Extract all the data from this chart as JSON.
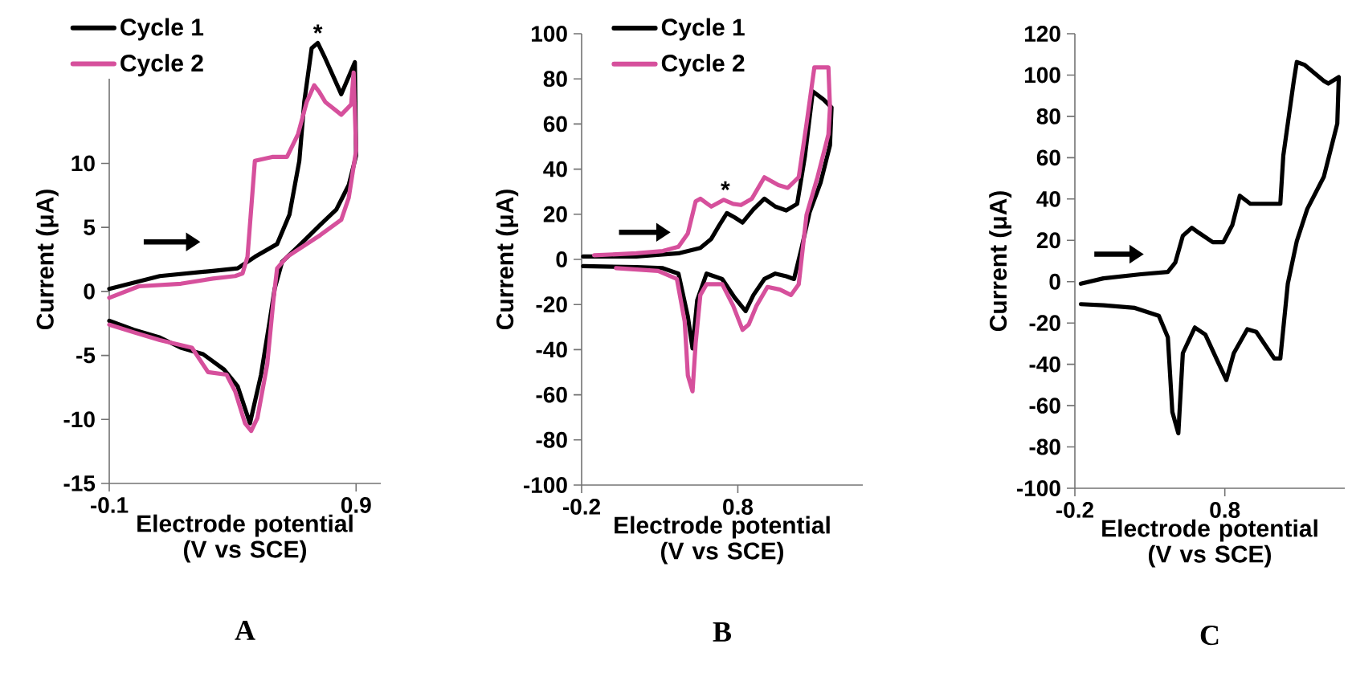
{
  "chart_data": [
    {
      "type": "line",
      "title": "A",
      "xlabel": "Electrode potential (V vs SCE)",
      "ylabel": "Current (μA)",
      "xlim": [
        -0.1,
        1.0
      ],
      "ylim": [
        -15,
        20
      ],
      "xticks": [
        -0.1,
        0.9
      ],
      "yticks": [
        -15,
        -10,
        -5,
        0,
        5,
        10
      ],
      "legend": "top left",
      "annotations": [
        {
          "text": "*",
          "x": 0.745,
          "y": 19.4
        }
      ],
      "series": [
        {
          "name": "Cycle 1",
          "color": "#000000",
          "x": [
            -0.1,
            0.105,
            0.32,
            0.42,
            0.49,
            0.58,
            0.63,
            0.67,
            0.69,
            0.72,
            0.745,
            0.775,
            0.84,
            0.895,
            0.9,
            0.87,
            0.82,
            0.755,
            0.665,
            0.6,
            0.57,
            0.55,
            0.515,
            0.47,
            0.42,
            0.365,
            0.28,
            0.19,
            0.105,
            0.0,
            -0.1
          ],
          "values": [
            0.2,
            1.2,
            1.6,
            1.8,
            2.7,
            3.7,
            6.0,
            10.2,
            14.8,
            19.0,
            19.4,
            18.2,
            15.4,
            17.9,
            10.6,
            8.3,
            6.4,
            5.2,
            3.5,
            2.3,
            0.2,
            -2.3,
            -6.5,
            -10.3,
            -7.4,
            -6.1,
            -4.9,
            -4.4,
            -3.6,
            -3.0,
            -2.3
          ]
        },
        {
          "name": "Cycle 2",
          "color": "#d6509c",
          "x": [
            -0.1,
            0.02,
            0.19,
            0.32,
            0.41,
            0.44,
            0.46,
            0.49,
            0.56,
            0.62,
            0.665,
            0.7,
            0.73,
            0.75,
            0.775,
            0.84,
            0.88,
            0.89,
            0.9,
            0.87,
            0.84,
            0.755,
            0.62,
            0.58,
            0.565,
            0.54,
            0.5,
            0.475,
            0.45,
            0.41,
            0.375,
            0.3,
            0.235,
            0.105,
            0.0,
            -0.1
          ],
          "values": [
            -0.5,
            0.4,
            0.6,
            1.0,
            1.2,
            1.4,
            2.7,
            10.2,
            10.5,
            10.5,
            12.3,
            14.8,
            16.1,
            15.6,
            14.8,
            13.8,
            14.6,
            17.1,
            11.0,
            7.3,
            5.6,
            4.4,
            2.7,
            1.8,
            -0.7,
            -5.7,
            -9.9,
            -10.9,
            -10.3,
            -7.8,
            -6.5,
            -6.3,
            -4.4,
            -3.8,
            -3.2,
            -2.6
          ]
        }
      ]
    },
    {
      "type": "line",
      "title": "B",
      "xlabel": "Electrode potential (V vs SCE)",
      "ylabel": "Current (μA)",
      "xlim": [
        -0.2,
        1.6
      ],
      "ylim": [
        -100,
        100
      ],
      "xticks": [
        -0.2,
        0.8
      ],
      "yticks": [
        -100,
        -80,
        -60,
        -40,
        -20,
        0,
        20,
        40,
        60,
        80,
        100
      ],
      "legend": "top left",
      "annotations": [
        {
          "text": "*",
          "x": 0.72,
          "y": 26.4
        }
      ],
      "series": [
        {
          "name": "Cycle 1",
          "color": "#000000",
          "x": [
            -0.19,
            0.15,
            0.42,
            0.56,
            0.63,
            0.68,
            0.73,
            0.78,
            0.83,
            0.9,
            0.97,
            1.04,
            1.11,
            1.18,
            1.23,
            1.28,
            1.35,
            1.4,
            1.39,
            1.33,
            1.26,
            1.21,
            1.16,
            1.11,
            1.04,
            0.97,
            0.9,
            0.85,
            0.78,
            0.7,
            0.6,
            0.54,
            0.51,
            0.48,
            0.42,
            0.32,
            0.15,
            -0.19
          ],
          "values": [
            1.3,
            1.3,
            2.7,
            5.1,
            9.1,
            15,
            20.5,
            18.6,
            16.3,
            22.2,
            26.9,
            23.4,
            21.7,
            24.6,
            45.9,
            74.4,
            70.8,
            67.3,
            50.6,
            34,
            21,
            5.6,
            -8.7,
            -7.5,
            -6.3,
            -8.7,
            -15.8,
            -22.9,
            -17,
            -8.7,
            -6.3,
            -18.1,
            -39.5,
            -25.3,
            -6.3,
            -3.9,
            -3.4,
            -3.0
          ]
        },
        {
          "name": "Cycle 2",
          "color": "#d6509c",
          "x": [
            -0.12,
            0.15,
            0.32,
            0.42,
            0.48,
            0.53,
            0.56,
            0.63,
            0.71,
            0.77,
            0.82,
            0.89,
            0.97,
            1.06,
            1.12,
            1.19,
            1.24,
            1.29,
            1.38,
            1.39,
            1.38,
            1.31,
            1.24,
            1.19,
            1.14,
            1.07,
            0.99,
            0.92,
            0.87,
            0.83,
            0.77,
            0.7,
            0.6,
            0.56,
            0.53,
            0.51,
            0.48,
            0.46,
            0.41,
            0.29,
            0.02
          ],
          "values": [
            1.8,
            2.7,
            3.7,
            5.6,
            11.5,
            25.7,
            26.9,
            23.4,
            26.4,
            24.6,
            24.1,
            26.9,
            36.4,
            32.9,
            31.7,
            36.4,
            60.1,
            85.1,
            85.1,
            67.3,
            55.4,
            36.4,
            19.8,
            -11.0,
            -15.8,
            -13.4,
            -12.2,
            -20.5,
            -28.8,
            -31.2,
            -20.5,
            -11.0,
            -11.0,
            -15.8,
            -37.2,
            -58.5,
            -51.4,
            -27.6,
            -8.7,
            -5.1,
            -3.9
          ]
        }
      ]
    },
    {
      "type": "line",
      "title": "C",
      "xlabel": "Electrode potential (V vs SCE)",
      "ylabel": "Current (μA)",
      "xlim": [
        -0.2,
        1.6
      ],
      "ylim": [
        -100,
        120
      ],
      "xticks": [
        -0.2,
        0.8
      ],
      "yticks": [
        -100,
        -80,
        -60,
        -40,
        -20,
        0,
        20,
        40,
        60,
        80,
        100,
        120
      ],
      "series": [
        {
          "color": "#000000",
          "x": [
            -0.16,
            -0.01,
            0.24,
            0.42,
            0.47,
            0.52,
            0.58,
            0.63,
            0.72,
            0.79,
            0.85,
            0.9,
            0.97,
            1.04,
            1.17,
            1.19,
            1.26,
            1.28,
            1.33,
            1.46,
            1.49,
            1.56,
            1.55,
            1.46,
            1.35,
            1.28,
            1.22,
            1.17,
            1.13,
            1.01,
            0.95,
            0.86,
            0.81,
            0.76,
            0.67,
            0.6,
            0.52,
            0.49,
            0.45,
            0.42,
            0.36,
            0.2,
            -0.01,
            -0.16
          ],
          "values": [
            -1.0,
            1.6,
            3.6,
            4.7,
            9.3,
            22.2,
            26.1,
            23.5,
            19.1,
            19.1,
            27.4,
            41.6,
            37.7,
            37.7,
            37.7,
            61,
            97.2,
            106.3,
            105,
            97.2,
            95.9,
            99,
            76.5,
            50.7,
            35.2,
            19.6,
            -1.0,
            -37.2,
            -37.2,
            -24.3,
            -23,
            -34.6,
            -47.6,
            -39.8,
            -25.6,
            -22.2,
            -34.6,
            -73.4,
            -63.1,
            -26.9,
            -16.5,
            -12.7,
            -11.4,
            -10.9
          ]
        }
      ]
    }
  ]
}
